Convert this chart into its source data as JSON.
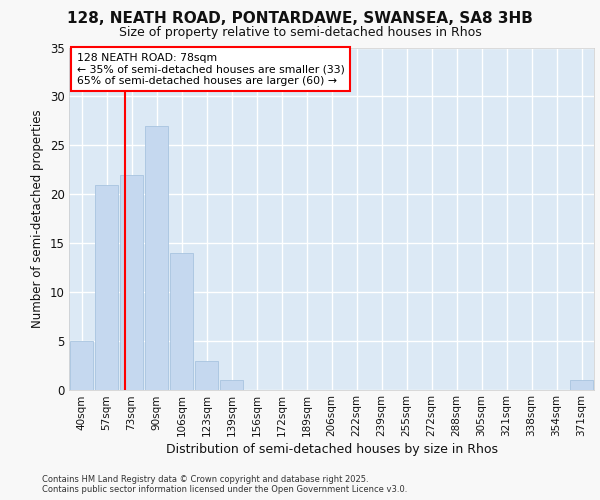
{
  "title_line1": "128, NEATH ROAD, PONTARDAWE, SWANSEA, SA8 3HB",
  "title_line2": "Size of property relative to semi-detached houses in Rhos",
  "xlabel": "Distribution of semi-detached houses by size in Rhos",
  "ylabel": "Number of semi-detached properties",
  "categories": [
    "40sqm",
    "57sqm",
    "73sqm",
    "90sqm",
    "106sqm",
    "123sqm",
    "139sqm",
    "156sqm",
    "172sqm",
    "189sqm",
    "206sqm",
    "222sqm",
    "239sqm",
    "255sqm",
    "272sqm",
    "288sqm",
    "305sqm",
    "321sqm",
    "338sqm",
    "354sqm",
    "371sqm"
  ],
  "values": [
    5,
    21,
    22,
    27,
    14,
    3,
    1,
    0,
    0,
    0,
    0,
    0,
    0,
    0,
    0,
    0,
    0,
    0,
    0,
    0,
    1
  ],
  "bar_color": "#c5d8ef",
  "bar_edgecolor": "#a8c4e0",
  "redline_x": 1.72,
  "annotation_line1": "128 NEATH ROAD: 78sqm",
  "annotation_line2": "← 35% of semi-detached houses are smaller (33)",
  "annotation_line3": "65% of semi-detached houses are larger (60) →",
  "ylim": [
    0,
    35
  ],
  "yticks": [
    0,
    5,
    10,
    15,
    20,
    25,
    30,
    35
  ],
  "plot_bg_color": "#dce9f5",
  "fig_bg_color": "#f8f8f8",
  "footer_line1": "Contains HM Land Registry data © Crown copyright and database right 2025.",
  "footer_line2": "Contains public sector information licensed under the Open Government Licence v3.0."
}
